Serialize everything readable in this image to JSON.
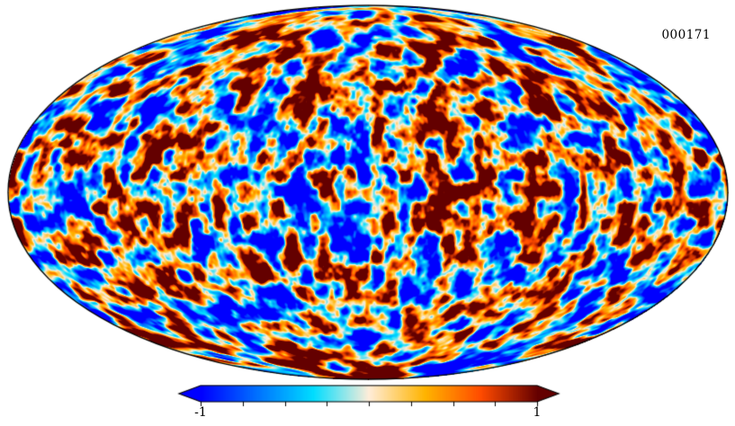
{
  "chart_data": {
    "type": "heatmap",
    "projection": "mollweide",
    "frame_label": "000171",
    "title": "",
    "description": "Full-sky simulated temperature anisotropy map (CMB-style) in Mollweide projection with horizontal colorbar",
    "value_range": [
      -1,
      1
    ],
    "colorbar": {
      "orientation": "horizontal",
      "extend": "both",
      "min": -1,
      "max": 1,
      "tick_values": [
        -1,
        -0.75,
        -0.5,
        -0.25,
        0,
        0.25,
        0.5,
        0.75,
        1
      ],
      "tick_label_min": "-1",
      "tick_label_max": "1"
    },
    "colormap": {
      "name": "planck-parchment",
      "stops": [
        {
          "pos": 0.0,
          "color": "#0000FF"
        },
        {
          "pos": 0.165,
          "color": "#0070FF"
        },
        {
          "pos": 0.333,
          "color": "#00DDFF"
        },
        {
          "pos": 0.498,
          "color": "#FFEDD9"
        },
        {
          "pos": 0.665,
          "color": "#FFB400"
        },
        {
          "pos": 0.831,
          "color": "#FF4B00"
        },
        {
          "pos": 1.0,
          "color": "#640000"
        }
      ]
    },
    "noise": {
      "seed": 171,
      "octaves": [
        {
          "freq": 9,
          "amp": 1.0
        },
        {
          "freq": 18.5,
          "amp": 0.45
        },
        {
          "freq": 37,
          "amp": 0.2
        }
      ],
      "contrast": 3.2
    }
  },
  "figure": {
    "background": "#FFFFFF",
    "outline_color": "#000000"
  }
}
